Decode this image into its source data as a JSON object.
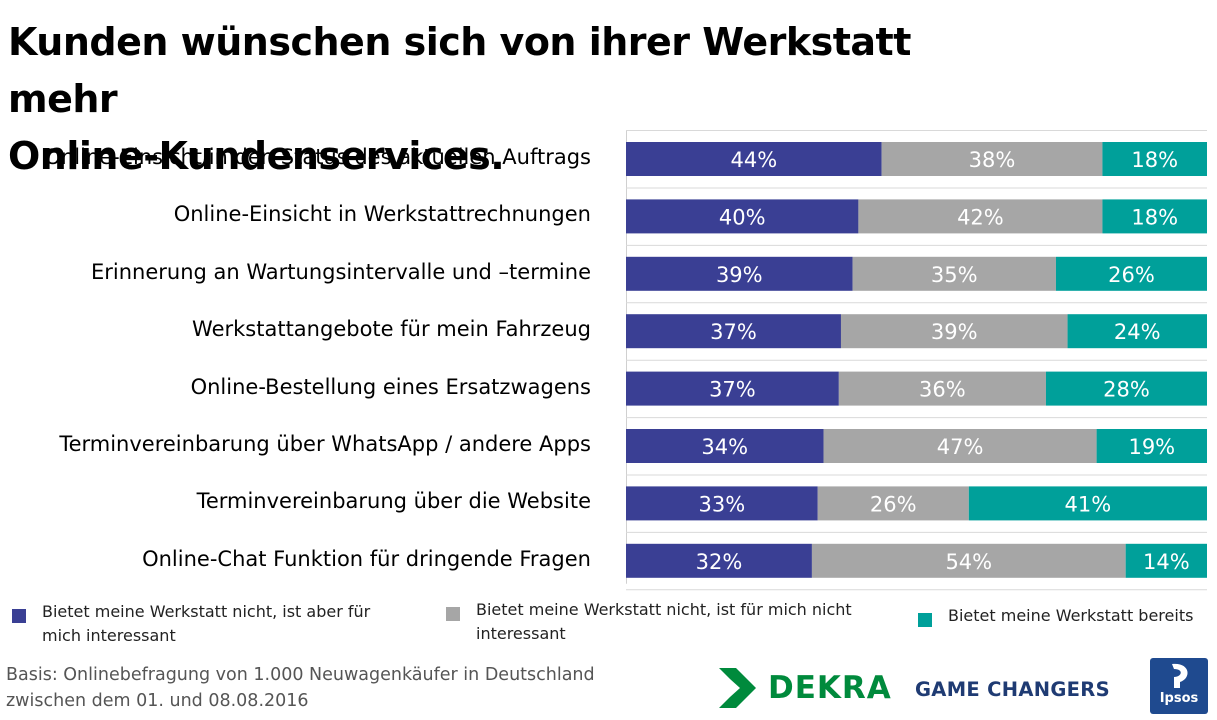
{
  "title_lines": [
    "Kunden wünschen sich von ihrer Werkstatt mehr",
    "Online-Kundenservices."
  ],
  "chart_data": {
    "type": "bar",
    "orientation": "horizontal",
    "stacked": true,
    "percent_stacked": true,
    "categories": [
      "Online-Einsicht in den Status des aktuellen Auftrags",
      "Online-Einsicht in Werkstattrechnungen",
      "Erinnerung an Wartungsintervalle und –termine",
      "Werkstattangebote für mein Fahrzeug",
      "Online-Bestellung eines Ersatzwagens",
      "Terminvereinbarung über WhatsApp / andere Apps",
      "Terminvereinbarung über die Website",
      "Online-Chat Funktion für dringende Fragen"
    ],
    "series": [
      {
        "name": "Bietet meine Werkstatt nicht, ist aber für mich interessant",
        "color": "#3a3f94",
        "values": [
          44,
          40,
          39,
          37,
          37,
          34,
          33,
          32
        ]
      },
      {
        "name": "Bietet meine Werkstatt nicht, ist für mich nicht interessant",
        "color": "#a6a6a6",
        "values": [
          38,
          42,
          35,
          39,
          36,
          47,
          26,
          54
        ]
      },
      {
        "name": "Bietet meine Werkstatt bereits",
        "color": "#00a09a",
        "values": [
          18,
          18,
          26,
          24,
          28,
          19,
          41,
          14
        ]
      }
    ],
    "value_suffix": "%",
    "xlim": [
      0,
      100
    ],
    "legend_position": "bottom"
  },
  "legend": [
    {
      "lines": [
        "Bietet meine Werkstatt nicht, ist aber für",
        "mich interessant"
      ],
      "color": "#3a3f94"
    },
    {
      "lines": [
        "Bietet meine Werkstatt nicht, ist für mich nicht",
        "interessant"
      ],
      "color": "#a6a6a6"
    },
    {
      "lines": [
        "Bietet meine Werkstatt bereits"
      ],
      "color": "#00a09a"
    }
  ],
  "footer_lines": [
    "Basis:  Onlinebefragung von 1.000 Neuwagenkäufer in Deutschland",
    "zwischen dem 01. und 08.08.2016"
  ],
  "logos": {
    "dekra": "DEKRA",
    "game_changers": "GAME CHANGERS",
    "ipsos": "Ipsos"
  },
  "colors": {
    "dekra_green": "#008a3c",
    "gc_blue": "#1f3b73",
    "ipsos_blue": "#1f4a8f"
  }
}
